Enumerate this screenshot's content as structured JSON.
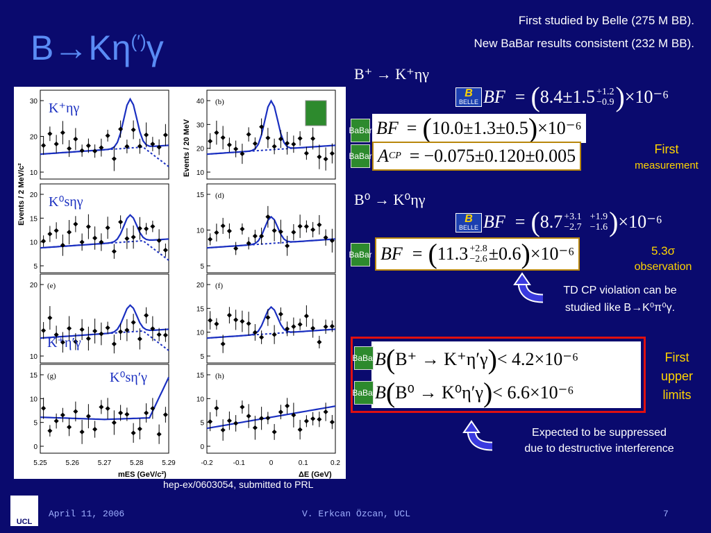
{
  "title": {
    "main": "B→Kη",
    "sup": "(′)",
    "tail": "γ"
  },
  "header": {
    "line1": "First studied by Belle (275 M BB).",
    "line2": "New BaBar results consistent (232 M BB)."
  },
  "plots": {
    "ylabel_left": "Events / 2 MeV/c²",
    "ylabel_right": "Events / 20 MeV",
    "xlabel_left": "mES (GeV/c²)",
    "xlabel_right": "ΔE (GeV)",
    "x_ticks_left": [
      "5.25",
      "5.26",
      "5.27",
      "5.28",
      "5.29"
    ],
    "x_ticks_right": [
      "-0.2",
      "-0.1",
      "0",
      "0.1",
      "0.2"
    ],
    "panels": [
      {
        "id": "a",
        "label": "K⁺ηγ",
        "yticks": [
          "10",
          "20",
          "30"
        ]
      },
      {
        "id": "b",
        "label": "(b)",
        "yticks": [
          "10",
          "20",
          "30",
          "40"
        ]
      },
      {
        "id": "c",
        "label": "K⁰sηγ",
        "yticks": [
          "5",
          "10",
          "15",
          "20"
        ]
      },
      {
        "id": "d",
        "label": "(d)",
        "yticks": [
          "5",
          "10",
          "15"
        ]
      },
      {
        "id": "e",
        "label": "(e)",
        "yticks": [
          "10",
          "20"
        ]
      },
      {
        "id": "f",
        "label": "(f)",
        "yticks": [
          "5",
          "10",
          "15",
          "20"
        ]
      },
      {
        "id": "g",
        "label": "(g)",
        "yticks": [
          "0",
          "5",
          "10",
          "15"
        ]
      },
      {
        "id": "h",
        "label": "(h)",
        "yticks": [
          "0",
          "5",
          "10",
          "15"
        ]
      }
    ],
    "label_e_text": "K⁺η′γ",
    "label_g_text": "K⁰sη′γ"
  },
  "citation": "hep-ex/0603054, submitted to PRL",
  "sec1": {
    "decay": "B⁺ → K⁺ηγ"
  },
  "eq1": {
    "lhs": "BF",
    "eq": "=",
    "val": "8.4±1.5",
    "up": "+1.2",
    "dn": "−0.9",
    "exp": "×10⁻⁶"
  },
  "eq2": {
    "lhs": "BF",
    "eq": "=",
    "body": "10.0±1.3±0.5",
    "exp": "×10⁻⁶"
  },
  "eq3": {
    "lhs": "A",
    "sub": "CP",
    "eq": "=",
    "body": "−0.075±0.120±0.005"
  },
  "first_measurement": {
    "l1": "First",
    "l2": "measurement"
  },
  "sec2": {
    "decay": "B⁰ → K⁰ηγ"
  },
  "eq4": {
    "lhs": "BF",
    "eq": "=",
    "val": "8.7",
    "up1": "+3.1",
    "dn1": "−2.7",
    "up2": "+1.9",
    "dn2": "−1.6",
    "exp": "×10⁻⁶"
  },
  "eq5": {
    "lhs": "BF",
    "eq": "=",
    "val": "11.3",
    "up": "+2.8",
    "dn": "−2.6",
    "rest": "±0.6",
    "exp": "×10⁻⁶"
  },
  "observation": {
    "l1": "5.3σ",
    "l2": "observation"
  },
  "td_note": {
    "l1": "TD CP violation can be",
    "l2": "studied like B→K⁰π⁰γ."
  },
  "limits": {
    "l1": {
      "lhs": "B",
      "decay": "B⁺ → K⁺η′γ",
      "rhs": "< 4.2×10⁻⁶"
    },
    "l2": {
      "lhs": "B",
      "decay": "B⁰ → K⁰η′γ",
      "rhs": "< 6.6×10⁻⁶"
    }
  },
  "first_upper": {
    "l1": "First",
    "l2": "upper",
    "l3": "limits"
  },
  "suppressed": {
    "l1": "Expected to be suppressed",
    "l2": "due to destructive interference"
  },
  "footer": {
    "date": "April 11, 2006",
    "author": "V. Erkcan Özcan, UCL",
    "page": "7",
    "logo": "UCL"
  },
  "logos": {
    "belle": "BELLE",
    "belle_letter": "B",
    "babar": "BaBar"
  },
  "colors": {
    "bg": "#0a0a6e",
    "title": "#5a8cf5",
    "yellow": "#ffd400",
    "redbox": "#e01010"
  }
}
